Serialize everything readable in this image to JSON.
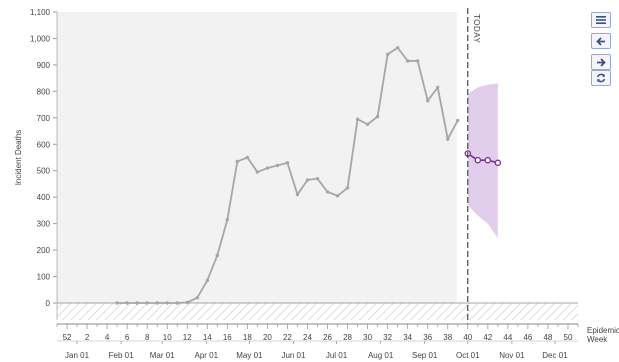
{
  "controls": [
    {
      "name": "menu-icon",
      "label": ""
    },
    {
      "name": "arrow-left-icon",
      "label": ""
    },
    {
      "name": "arrow-right-icon",
      "label": ""
    },
    {
      "name": "refresh-icon",
      "label": ""
    }
  ],
  "colors": {
    "actual": "#a6a6a6",
    "forecast": "#7b2f95",
    "band": "#dcc6ea",
    "history_bg": "#f2f2f2",
    "today_line": "#222222"
  },
  "chart_data": {
    "type": "line",
    "ylabel": "Incident Deaths",
    "xlabel": "Epidemic Week",
    "today_label": "TODAY",
    "today_week": 40,
    "ylim": [
      0,
      1100
    ],
    "y_ticks": [
      0,
      100,
      200,
      300,
      400,
      500,
      600,
      700,
      800,
      900,
      1000,
      1100
    ],
    "y_tick_labels": [
      "0",
      "100",
      "200",
      "300",
      "400",
      "500",
      "600",
      "700",
      "800",
      "900",
      "1,000",
      "1,100"
    ],
    "week_ticks": [
      {
        "label": "52",
        "index": 0
      },
      {
        "label": "2",
        "index": 2
      },
      {
        "label": "4",
        "index": 4
      },
      {
        "label": "6",
        "index": 6
      },
      {
        "label": "8",
        "index": 8
      },
      {
        "label": "10",
        "index": 10
      },
      {
        "label": "12",
        "index": 12
      },
      {
        "label": "14",
        "index": 14
      },
      {
        "label": "16",
        "index": 16
      },
      {
        "label": "18",
        "index": 18
      },
      {
        "label": "20",
        "index": 20
      },
      {
        "label": "22",
        "index": 22
      },
      {
        "label": "24",
        "index": 24
      },
      {
        "label": "26",
        "index": 26
      },
      {
        "label": "28",
        "index": 28
      },
      {
        "label": "30",
        "index": 30
      },
      {
        "label": "32",
        "index": 32
      },
      {
        "label": "34",
        "index": 34
      },
      {
        "label": "36",
        "index": 36
      },
      {
        "label": "38",
        "index": 38
      },
      {
        "label": "40",
        "index": 40
      },
      {
        "label": "42",
        "index": 42
      },
      {
        "label": "44",
        "index": 44
      },
      {
        "label": "46",
        "index": 46
      },
      {
        "label": "48",
        "index": 48
      },
      {
        "label": "50",
        "index": 50
      }
    ],
    "month_ticks": [
      {
        "label": "Jan 01",
        "index": 1.0
      },
      {
        "label": "Feb 01",
        "index": 5.4
      },
      {
        "label": "Mar 01",
        "index": 9.5
      },
      {
        "label": "Apr 01",
        "index": 13.9
      },
      {
        "label": "May 01",
        "index": 18.2
      },
      {
        "label": "Jun 01",
        "index": 22.6
      },
      {
        "label": "Jul 01",
        "index": 26.9
      },
      {
        "label": "Aug 01",
        "index": 31.3
      },
      {
        "label": "Sep 01",
        "index": 35.7
      },
      {
        "label": "Oct 01",
        "index": 40.0
      },
      {
        "label": "Nov 01",
        "index": 44.4
      },
      {
        "label": "Dec 01",
        "index": 48.7
      }
    ],
    "series": [
      {
        "x": [
          5,
          6,
          7,
          8,
          9,
          10,
          11,
          12,
          13,
          14,
          15,
          16,
          17,
          18,
          19,
          20,
          21,
          22,
          23,
          24,
          25,
          26,
          27,
          28,
          29,
          30,
          31,
          32,
          33,
          34,
          35,
          36,
          37,
          38,
          39
        ],
        "values": [
          0,
          0,
          0,
          0,
          0,
          0,
          0,
          2,
          20,
          85,
          180,
          315,
          535,
          550,
          495,
          510,
          520,
          530,
          410,
          465,
          470,
          420,
          405,
          435,
          695,
          675,
          705,
          940,
          965,
          915,
          915,
          765,
          815,
          620,
          690
        ]
      },
      {
        "x": [
          40,
          41,
          42,
          43
        ],
        "values": [
          565,
          540,
          540,
          530
        ]
      }
    ],
    "interval": {
      "x": [
        40,
        41,
        42,
        43
      ],
      "lower": [
        370,
        330,
        300,
        245
      ],
      "upper": [
        790,
        815,
        825,
        830
      ]
    }
  }
}
